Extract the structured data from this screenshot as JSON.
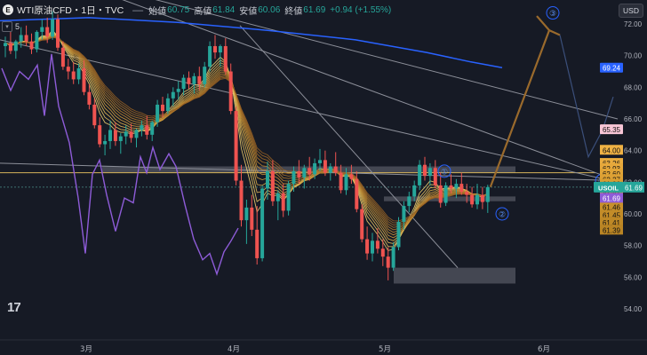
{
  "header": {
    "logo_letter": "E",
    "title": "WTI原油CFD・1日・TVC",
    "open_label": "始値",
    "open_value": "60.75",
    "high_label": "高値",
    "high_value": "61.84",
    "low_label": "安値",
    "low_value": "60.06",
    "close_label": "終値",
    "close_value": "61.69",
    "change": "+0.94 (+1.55%)",
    "indicator_count": "5"
  },
  "currency_button": "USD",
  "colors": {
    "background": "#161a25",
    "up": "#26a69a",
    "down": "#ef5350",
    "ma_long": "#2962ff",
    "oscillator": "#8e5cd8",
    "ribbon": "#e3c058",
    "arrow": "#9a6a2c",
    "wave_circle": "#2962ff"
  },
  "chart_data": {
    "type": "candlestick",
    "symbol": "USOIL",
    "timeframe": "1日",
    "x_tick_labels": [
      "3月",
      "4月",
      "5月",
      "6月"
    ],
    "y_tick_labels": [
      "72.00",
      "70.00",
      "68.00",
      "66.00",
      "64.00",
      "62.00",
      "60.00",
      "58.00",
      "56.00",
      "54.00"
    ],
    "ylim": [
      53,
      74
    ],
    "grid": false,
    "candles": [
      [
        70.6,
        71.2,
        69.9,
        70.8
      ],
      [
        70.8,
        71.5,
        70.1,
        70.3
      ],
      [
        70.3,
        71.0,
        69.8,
        70.9
      ],
      [
        70.9,
        71.8,
        70.5,
        71.3
      ],
      [
        71.3,
        71.9,
        70.6,
        70.9
      ],
      [
        70.9,
        71.4,
        70.1,
        70.4
      ],
      [
        70.4,
        71.6,
        70.2,
        71.5
      ],
      [
        71.5,
        72.3,
        71.0,
        71.8
      ],
      [
        71.8,
        72.4,
        70.8,
        71.2
      ],
      [
        71.2,
        72.8,
        71.0,
        72.3
      ],
      [
        72.3,
        72.6,
        70.3,
        70.5
      ],
      [
        70.5,
        70.9,
        69.1,
        69.3
      ],
      [
        69.3,
        69.8,
        68.5,
        69.0
      ],
      [
        69.0,
        69.6,
        68.2,
        68.5
      ],
      [
        68.5,
        69.5,
        68.2,
        69.2
      ],
      [
        69.2,
        69.7,
        67.5,
        67.7
      ],
      [
        67.7,
        68.2,
        66.6,
        66.9
      ],
      [
        66.9,
        67.3,
        65.4,
        65.6
      ],
      [
        65.6,
        66.1,
        64.2,
        64.4
      ],
      [
        64.4,
        65.0,
        63.7,
        64.6
      ],
      [
        64.6,
        65.9,
        64.1,
        65.3
      ],
      [
        65.3,
        65.8,
        64.3,
        64.6
      ],
      [
        64.6,
        65.1,
        63.8,
        64.9
      ],
      [
        64.9,
        65.6,
        64.4,
        65.2
      ],
      [
        65.2,
        65.7,
        64.5,
        64.8
      ],
      [
        64.8,
        65.4,
        64.2,
        65.3
      ],
      [
        65.3,
        65.9,
        64.9,
        65.6
      ],
      [
        65.6,
        66.2,
        64.7,
        65.0
      ],
      [
        65.0,
        65.9,
        64.6,
        65.8
      ],
      [
        65.8,
        67.2,
        65.5,
        66.9
      ],
      [
        66.9,
        67.4,
        66.1,
        66.5
      ],
      [
        66.5,
        67.6,
        66.3,
        67.3
      ],
      [
        67.3,
        68.0,
        66.8,
        67.7
      ],
      [
        67.7,
        68.4,
        67.2,
        67.9
      ],
      [
        67.9,
        68.8,
        67.5,
        68.6
      ],
      [
        68.6,
        69.0,
        67.9,
        68.2
      ],
      [
        68.2,
        68.9,
        67.6,
        68.7
      ],
      [
        68.7,
        69.3,
        67.8,
        68.2
      ],
      [
        68.2,
        69.6,
        68.0,
        69.3
      ],
      [
        69.3,
        70.9,
        69.0,
        70.6
      ],
      [
        70.6,
        71.3,
        69.8,
        70.2
      ],
      [
        70.2,
        70.7,
        69.3,
        70.6
      ],
      [
        70.6,
        71.1,
        68.8,
        69.0
      ],
      [
        69.0,
        69.5,
        66.3,
        66.5
      ],
      [
        66.5,
        66.8,
        61.8,
        62.1
      ],
      [
        62.1,
        63.1,
        59.2,
        59.6
      ],
      [
        59.6,
        60.9,
        58.1,
        60.4
      ],
      [
        60.4,
        61.2,
        58.6,
        59.0
      ],
      [
        59.0,
        60.5,
        56.8,
        57.2
      ],
      [
        57.2,
        61.8,
        57.0,
        61.6
      ],
      [
        61.6,
        63.3,
        60.9,
        62.7
      ],
      [
        62.7,
        63.4,
        60.5,
        60.8
      ],
      [
        60.8,
        61.5,
        59.6,
        61.3
      ],
      [
        61.3,
        61.9,
        59.8,
        60.2
      ],
      [
        60.2,
        62.1,
        59.9,
        61.9
      ],
      [
        61.9,
        63.0,
        61.4,
        62.7
      ],
      [
        62.7,
        63.4,
        61.9,
        62.3
      ],
      [
        62.3,
        63.1,
        61.6,
        62.9
      ],
      [
        62.9,
        63.6,
        62.1,
        62.5
      ],
      [
        62.5,
        63.5,
        62.2,
        63.2
      ],
      [
        63.2,
        64.1,
        62.7,
        63.4
      ],
      [
        63.4,
        64.0,
        62.4,
        62.6
      ],
      [
        62.6,
        63.2,
        62.1,
        63.0
      ],
      [
        63.0,
        63.9,
        62.4,
        62.6
      ],
      [
        62.6,
        63.1,
        61.3,
        61.5
      ],
      [
        61.5,
        62.9,
        61.2,
        62.5
      ],
      [
        62.5,
        63.1,
        61.9,
        62.2
      ],
      [
        62.2,
        62.7,
        60.1,
        60.3
      ],
      [
        60.3,
        60.6,
        58.2,
        58.4
      ],
      [
        58.4,
        59.2,
        57.1,
        57.5
      ],
      [
        57.5,
        58.8,
        57.0,
        58.3
      ],
      [
        58.3,
        59.1,
        57.5,
        57.8
      ],
      [
        57.8,
        58.4,
        56.7,
        57.3
      ],
      [
        57.3,
        57.9,
        55.8,
        56.6
      ],
      [
        56.6,
        58.2,
        56.4,
        57.9
      ],
      [
        57.9,
        59.8,
        57.7,
        59.5
      ],
      [
        59.5,
        60.8,
        59.0,
        60.5
      ],
      [
        60.5,
        61.4,
        60.1,
        61.1
      ],
      [
        61.1,
        62.1,
        60.8,
        61.8
      ],
      [
        61.8,
        63.4,
        61.5,
        63.1
      ],
      [
        63.1,
        63.6,
        62.1,
        62.4
      ],
      [
        62.4,
        63.2,
        61.8,
        62.9
      ],
      [
        62.9,
        63.4,
        61.6,
        61.8
      ],
      [
        61.8,
        62.6,
        60.4,
        60.7
      ],
      [
        60.7,
        62.0,
        60.5,
        61.8
      ],
      [
        61.8,
        62.5,
        61.3,
        61.6
      ],
      [
        61.6,
        62.2,
        61.0,
        61.9
      ],
      [
        61.9,
        62.6,
        61.2,
        61.4
      ],
      [
        61.4,
        61.9,
        60.7,
        61.2
      ],
      [
        61.2,
        61.7,
        60.4,
        60.6
      ],
      [
        60.6,
        61.9,
        60.3,
        61.2
      ],
      [
        61.2,
        61.7,
        60.3,
        60.75
      ],
      [
        60.75,
        61.84,
        60.06,
        61.69
      ]
    ],
    "ma_ribbon_last_values": [
      "64.00",
      "63.26",
      "62.93",
      "62.60",
      "62.27",
      "61.96",
      "61.51",
      "61.49",
      "61.46",
      "61.45",
      "61.41",
      "61.39"
    ],
    "ma_long": {
      "name": "",
      "value": "69.24"
    },
    "ma_upper": {
      "value": "65.35"
    },
    "oscillator_value": "61.69",
    "last_price": {
      "symbol": "USOIL",
      "value": "61.69"
    },
    "annotations": [
      "①",
      "②",
      "③",
      "④"
    ]
  }
}
